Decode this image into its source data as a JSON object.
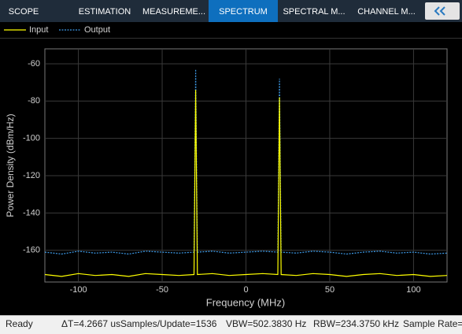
{
  "tabs": [
    "SCOPE",
    "ESTIMATION",
    "MEASUREME...",
    "SPECTRUM",
    "SPECTRAL M...",
    "CHANNEL M..."
  ],
  "active_tab": 3,
  "status": [
    "Ready",
    "ΔT=4.2667 us",
    "Samples/Update=1536",
    "VBW=502.3830 Hz",
    "RBW=234.3750 kHz",
    "Sample Rate="
  ],
  "chart_data": {
    "type": "line",
    "x_label": "Frequency (MHz)",
    "y_label": "Power Density (dBm/Hz)",
    "x": [
      -120,
      -110,
      -100,
      -90,
      -80,
      -70,
      -60,
      -50,
      -40,
      -31,
      -30,
      -29,
      -20,
      -10,
      0,
      10,
      19,
      20,
      21,
      30,
      40,
      50,
      60,
      70,
      80,
      90,
      100,
      110,
      120
    ],
    "series": [
      {
        "name": "Output",
        "color": "#3d9be9",
        "dash": true,
        "values": [
          -161,
          -162,
          -160.5,
          -161.5,
          -161,
          -162,
          -160.5,
          -161,
          -161.5,
          -161,
          -63,
          -161,
          -160.5,
          -161.5,
          -161,
          -160.5,
          -161,
          -68,
          -161,
          -161.5,
          -160.5,
          -161,
          -162,
          -161,
          -160.5,
          -161.5,
          -161,
          -162,
          -161.5
        ]
      },
      {
        "name": "Input",
        "color": "#ffff00",
        "dash": false,
        "values": [
          -173,
          -174,
          -172.5,
          -173.5,
          -173,
          -174,
          -172.5,
          -173,
          -173.5,
          -173,
          -74,
          -173,
          -172.5,
          -173.5,
          -173,
          -172.5,
          -173,
          -78,
          -173,
          -173.5,
          -172.5,
          -173,
          -174,
          -173,
          -172.5,
          -173.5,
          -173,
          -174,
          -173.5
        ]
      }
    ],
    "xlim": [
      -120,
      120
    ],
    "ylim": [
      -177,
      -52
    ],
    "xticks": [
      -100,
      -50,
      0,
      50,
      100
    ],
    "yticks": [
      -160,
      -140,
      -120,
      -100,
      -80,
      -60
    ],
    "grid": true
  }
}
